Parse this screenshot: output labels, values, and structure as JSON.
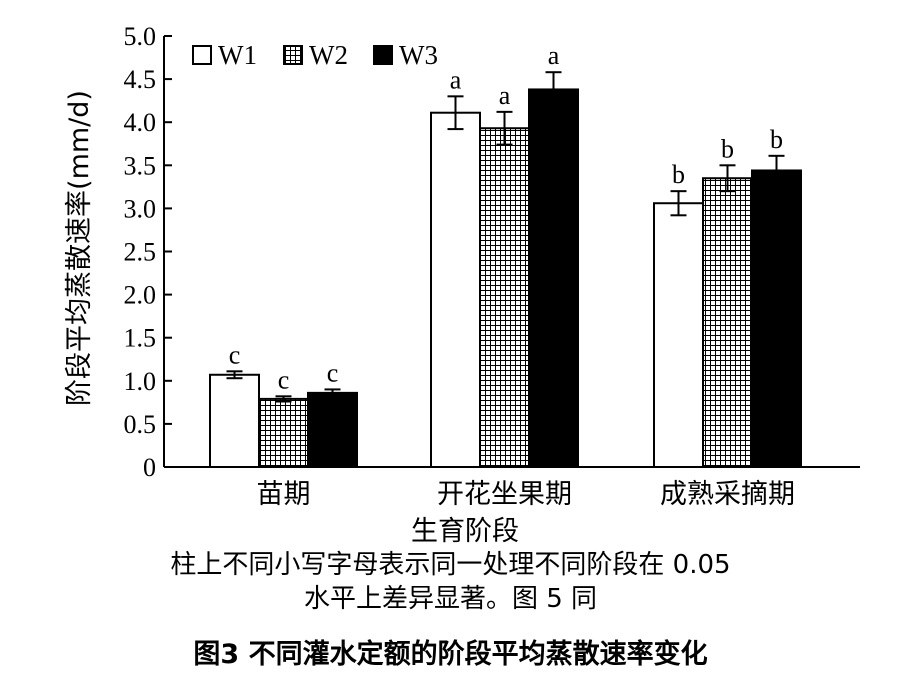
{
  "chart_data": {
    "type": "bar",
    "categories": [
      "苗期",
      "开花坐果期",
      "成熟采摘期"
    ],
    "series": [
      {
        "name": "W1",
        "fill": "#ffffff",
        "values": [
          1.07,
          4.11,
          3.06
        ],
        "errors": [
          0.04,
          0.19,
          0.14
        ],
        "sig": [
          "c",
          "a",
          "b"
        ]
      },
      {
        "name": "W2",
        "fill": "grid",
        "values": [
          0.79,
          3.93,
          3.35
        ],
        "errors": [
          0.03,
          0.19,
          0.15
        ],
        "sig": [
          "c",
          "a",
          "b"
        ]
      },
      {
        "name": "W3",
        "fill": "#000000",
        "values": [
          0.86,
          4.38,
          3.44
        ],
        "errors": [
          0.04,
          0.2,
          0.17
        ],
        "sig": [
          "c",
          "a",
          "b"
        ]
      }
    ],
    "ylim": [
      0,
      5.0
    ],
    "yticks": [
      "0",
      "0.5",
      "1.0",
      "1.5",
      "2.0",
      "2.5",
      "3.0",
      "3.5",
      "4.0",
      "4.5",
      "5.0"
    ],
    "ylabel": "阶段平均蒸散速率(mm/d)",
    "xlabel": "生育阶段",
    "legend_position": "top-left",
    "grid": false
  },
  "note_line1": "柱上不同小写字母表示同一处理不同阶段在 0.05",
  "note_line2": "水平上差异显著。图 5 同",
  "caption": "图3   不同灌水定额的阶段平均蒸散速率变化"
}
